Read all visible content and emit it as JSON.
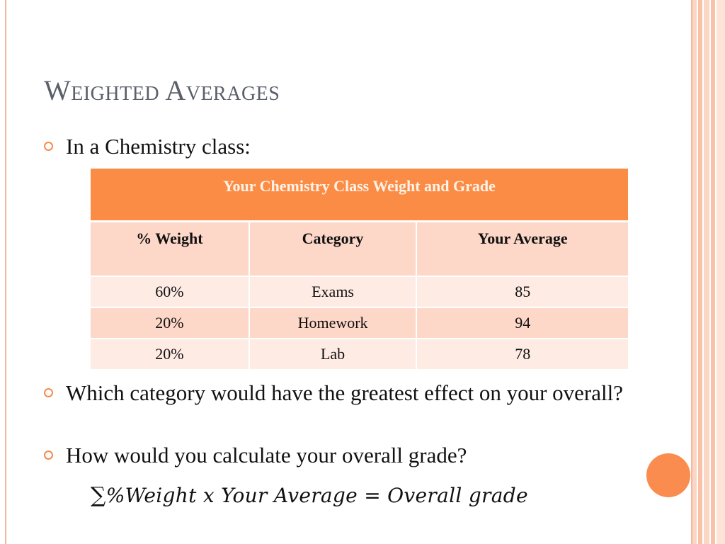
{
  "title": "Weighted Averages",
  "bullets": [
    "In a Chemistry class:",
    "Which category would have the greatest effect on your overall?",
    "How would you calculate your overall grade?"
  ],
  "table": {
    "caption": "Your Chemistry Class Weight and Grade",
    "headers": [
      "% Weight",
      "Category",
      "Your Average"
    ],
    "rows": [
      [
        "60%",
        "Exams",
        "85"
      ],
      [
        "20%",
        "Homework",
        "94"
      ],
      [
        "20%",
        "Lab",
        "78"
      ]
    ]
  },
  "formula": {
    "sigma": "∑",
    "text": "%Weight x Your Average = Overall grade"
  },
  "colors": {
    "accent": "#fb8c45",
    "title": "#5a5f6a"
  }
}
